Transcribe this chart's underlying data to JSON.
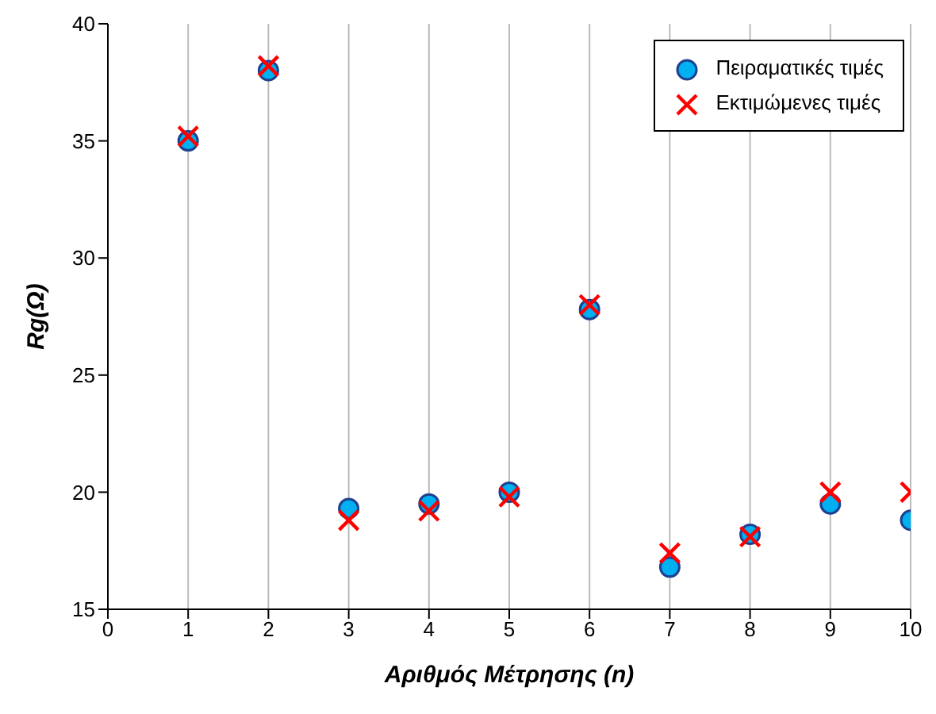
{
  "chart_data": {
    "type": "scatter",
    "xlabel": "Αριθμός Μέτρησης (n)",
    "ylabel": "Rg(Ω)",
    "x": [
      1,
      2,
      3,
      4,
      5,
      6,
      7,
      8,
      9,
      10
    ],
    "series": [
      {
        "name": "Πειραματικές τιμές",
        "color": "#00b0f0",
        "marker": "circle",
        "values": [
          35.0,
          38.0,
          19.3,
          19.5,
          20.0,
          27.8,
          16.8,
          18.2,
          19.5,
          18.8
        ]
      },
      {
        "name": "Εκτιμώμενες τιμές",
        "color": "#ff0000",
        "marker": "cross",
        "values": [
          35.2,
          38.2,
          18.8,
          19.2,
          19.8,
          28.0,
          17.4,
          18.1,
          20.0,
          20.0
        ]
      }
    ],
    "xlim": [
      0,
      10
    ],
    "xticks": [
      0,
      1,
      2,
      3,
      4,
      5,
      6,
      7,
      8,
      9,
      10
    ],
    "ylim": [
      15,
      40
    ],
    "yticks": [
      15,
      20,
      25,
      30,
      35,
      40
    ],
    "grid": "x",
    "legend": "top right"
  }
}
